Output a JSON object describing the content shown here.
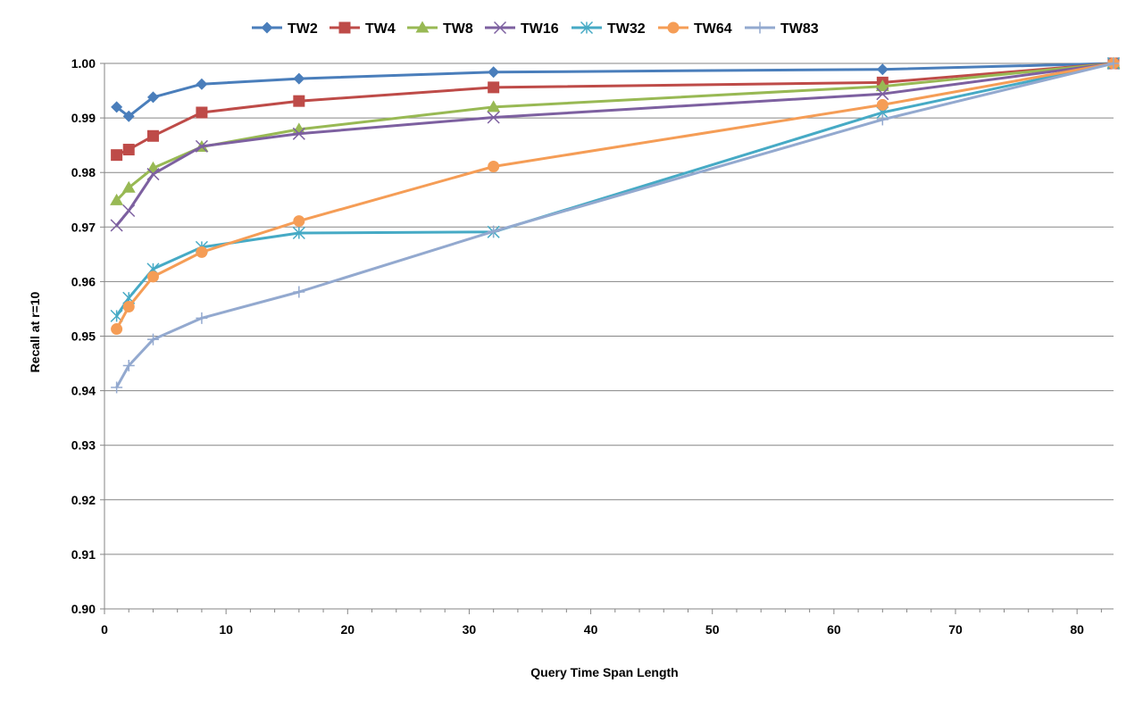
{
  "chart_data": {
    "type": "line",
    "title": "",
    "xlabel": "Query Time Span Length",
    "ylabel": "Recall at r=10",
    "xlim": [
      0,
      83
    ],
    "ylim": [
      0.9,
      1.0
    ],
    "x_ticks": [
      0,
      10,
      20,
      30,
      40,
      50,
      60,
      70,
      80
    ],
    "x_tick_labels": [
      "0",
      "10",
      "20",
      "30",
      "40",
      "50",
      "60",
      "70",
      "80"
    ],
    "y_ticks": [
      0.9,
      0.91,
      0.92,
      0.93,
      0.94,
      0.95,
      0.96,
      0.97,
      0.98,
      0.99,
      1.0
    ],
    "y_tick_labels": [
      "0.90",
      "0.91",
      "0.92",
      "0.93",
      "0.94",
      "0.95",
      "0.96",
      "0.97",
      "0.98",
      "0.99",
      "1.00"
    ],
    "grid": "horizontal",
    "legend_position": "top",
    "x": [
      1,
      2,
      4,
      8,
      16,
      32,
      64,
      83
    ],
    "series": [
      {
        "name": "TW2",
        "color": "#4a7ebb",
        "marker": "diamond",
        "values": [
          0.992,
          0.9903,
          0.9938,
          0.9962,
          0.9972,
          0.9984,
          0.9989,
          1.0
        ]
      },
      {
        "name": "TW4",
        "color": "#be4b48",
        "marker": "square",
        "values": [
          0.9832,
          0.9842,
          0.9867,
          0.991,
          0.9931,
          0.9956,
          0.9965,
          1.0
        ]
      },
      {
        "name": "TW8",
        "color": "#98b954",
        "marker": "triangle",
        "values": [
          0.9749,
          0.9772,
          0.9808,
          0.9847,
          0.9879,
          0.992,
          0.9958,
          1.0
        ]
      },
      {
        "name": "TW16",
        "color": "#7d60a0",
        "marker": "x",
        "values": [
          0.9703,
          0.973,
          0.9797,
          0.9848,
          0.9871,
          0.9901,
          0.9944,
          1.0
        ]
      },
      {
        "name": "TW32",
        "color": "#46aac5",
        "marker": "star",
        "values": [
          0.9537,
          0.957,
          0.9623,
          0.9663,
          0.9689,
          0.9691,
          0.991,
          1.0
        ]
      },
      {
        "name": "TW64",
        "color": "#f59d56",
        "marker": "circle",
        "values": [
          0.9513,
          0.9554,
          0.9609,
          0.9654,
          0.9711,
          0.9811,
          0.9924,
          1.0
        ]
      },
      {
        "name": "TW83",
        "color": "#93a9cf",
        "marker": "plus",
        "values": [
          0.9406,
          0.9446,
          0.9494,
          0.9533,
          0.9581,
          0.9692,
          0.9897,
          1.0
        ]
      }
    ]
  }
}
